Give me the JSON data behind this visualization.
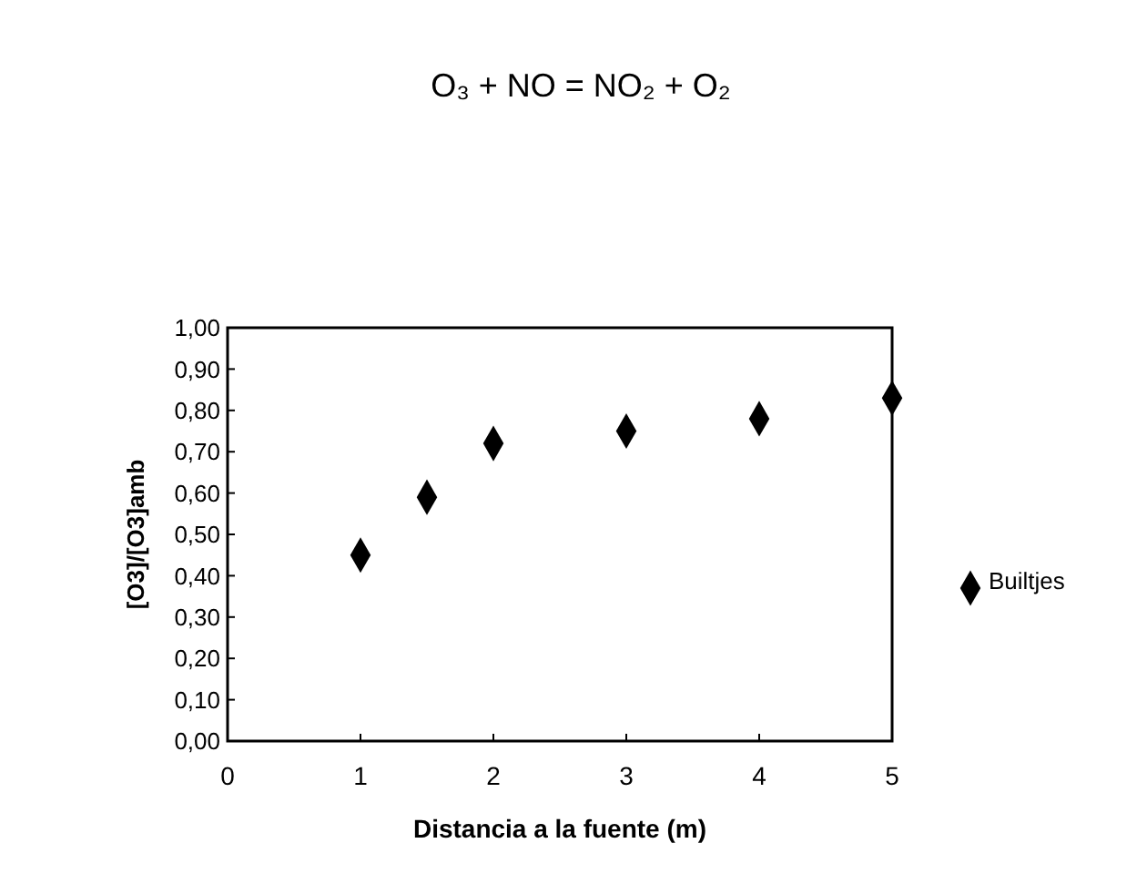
{
  "chart_data": {
    "type": "scatter",
    "title": "O₃ + NO = NO₂ + O₂",
    "xlabel": "Distancia a la fuente (m)",
    "ylabel": "[O3]/[O3]amb",
    "x": [
      1,
      1.5,
      2,
      3,
      4,
      5
    ],
    "series": [
      {
        "name": "Builtjes",
        "color": "#000000",
        "values": [
          0.45,
          0.59,
          0.72,
          0.75,
          0.78,
          0.83
        ]
      }
    ],
    "xlim": [
      0,
      5
    ],
    "xticks": [
      0,
      1,
      2,
      3,
      4,
      5
    ],
    "ylim": [
      0,
      1
    ],
    "yticks": [
      {
        "value": 0,
        "label": "0,00"
      },
      {
        "value": 0.1,
        "label": "0,10"
      },
      {
        "value": 0.2,
        "label": "0,20"
      },
      {
        "value": 0.3,
        "label": "0,30"
      },
      {
        "value": 0.4,
        "label": "0,40"
      },
      {
        "value": 0.5,
        "label": "0,50"
      },
      {
        "value": 0.6,
        "label": "0,60"
      },
      {
        "value": 0.7,
        "label": "0,70"
      },
      {
        "value": 0.8,
        "label": "0,80"
      },
      {
        "value": 0.9,
        "label": "0,90"
      },
      {
        "value": 1,
        "label": "1,00"
      }
    ],
    "marker": "diamond",
    "grid": false,
    "legend": "right"
  }
}
